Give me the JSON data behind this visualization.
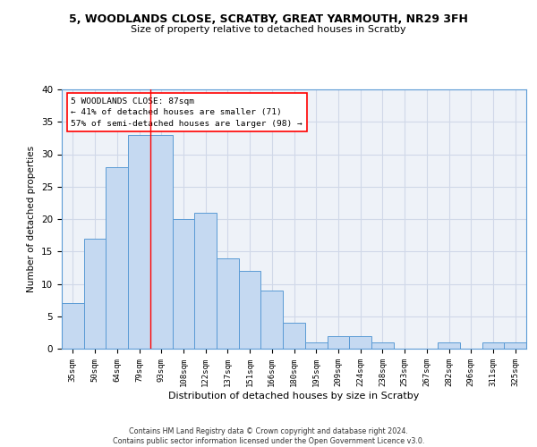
{
  "title1": "5, WOODLANDS CLOSE, SCRATBY, GREAT YARMOUTH, NR29 3FH",
  "title2": "Size of property relative to detached houses in Scratby",
  "xlabel": "Distribution of detached houses by size in Scratby",
  "ylabel": "Number of detached properties",
  "categories": [
    "35sqm",
    "50sqm",
    "64sqm",
    "79sqm",
    "93sqm",
    "108sqm",
    "122sqm",
    "137sqm",
    "151sqm",
    "166sqm",
    "180sqm",
    "195sqm",
    "209sqm",
    "224sqm",
    "238sqm",
    "253sqm",
    "267sqm",
    "282sqm",
    "296sqm",
    "311sqm",
    "325sqm"
  ],
  "values": [
    7,
    17,
    28,
    33,
    33,
    20,
    21,
    14,
    12,
    9,
    4,
    1,
    2,
    2,
    1,
    0,
    0,
    1,
    0,
    1,
    1
  ],
  "bar_color": "#c5d9f1",
  "bar_edge_color": "#5b9bd5",
  "red_line_x": 3.5,
  "annotation_line1": "5 WOODLANDS CLOSE: 87sqm",
  "annotation_line2": "← 41% of detached houses are smaller (71)",
  "annotation_line3": "57% of semi-detached houses are larger (98) →",
  "grid_color": "#d0d8e8",
  "background_color": "#eef2f8",
  "footer_text": "Contains HM Land Registry data © Crown copyright and database right 2024.\nContains public sector information licensed under the Open Government Licence v3.0.",
  "ylim": [
    0,
    40
  ],
  "yticks": [
    0,
    5,
    10,
    15,
    20,
    25,
    30,
    35,
    40
  ]
}
